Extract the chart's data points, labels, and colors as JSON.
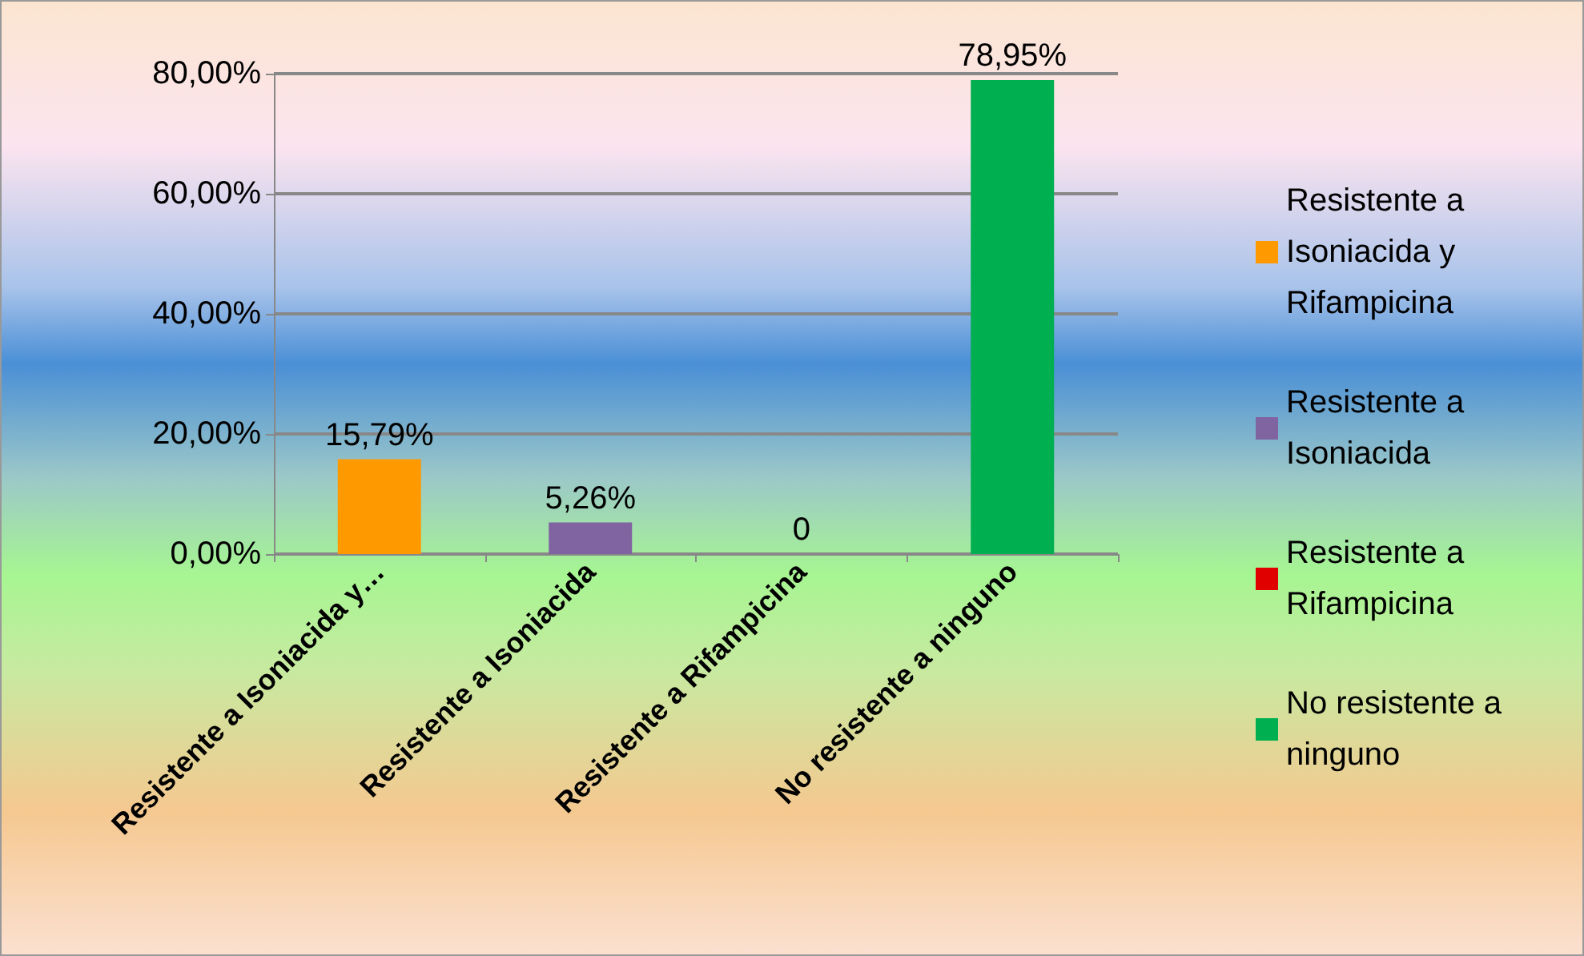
{
  "chart_data": {
    "type": "bar",
    "stacked": true,
    "categories": [
      "Resistente a Isoniacida y…",
      "Resistente a Isoniacida",
      "Resistente a Rifampicina",
      "No resistente a ninguno"
    ],
    "series": [
      {
        "name": "Resistente a Isoniacida y Rifampicina",
        "color": "#ff9900",
        "values": [
          15.79,
          null,
          null,
          null
        ],
        "value_labels": [
          "15,79%",
          null,
          null,
          null
        ]
      },
      {
        "name": "Resistente a Isoniacida",
        "color": "#8064a2",
        "values": [
          null,
          5.26,
          null,
          null
        ],
        "value_labels": [
          null,
          "5,26%",
          null,
          null
        ]
      },
      {
        "name": "Resistente a Rifampicina",
        "color": "#e00000",
        "values": [
          null,
          null,
          0,
          null
        ],
        "value_labels": [
          null,
          null,
          "0",
          null
        ]
      },
      {
        "name": "No resistente a ninguno",
        "color": "#00b050",
        "values": [
          null,
          null,
          null,
          78.95
        ],
        "value_labels": [
          null,
          null,
          null,
          "78,95%"
        ]
      }
    ],
    "ylim": [
      0,
      80
    ],
    "yticks": [
      {
        "value": 0,
        "label": "0,00%"
      },
      {
        "value": 20,
        "label": "20,00%"
      },
      {
        "value": 40,
        "label": "40,00%"
      },
      {
        "value": 60,
        "label": "60,00%"
      },
      {
        "value": 80,
        "label": "80,00%"
      }
    ],
    "grid": "y",
    "legend": "right"
  }
}
